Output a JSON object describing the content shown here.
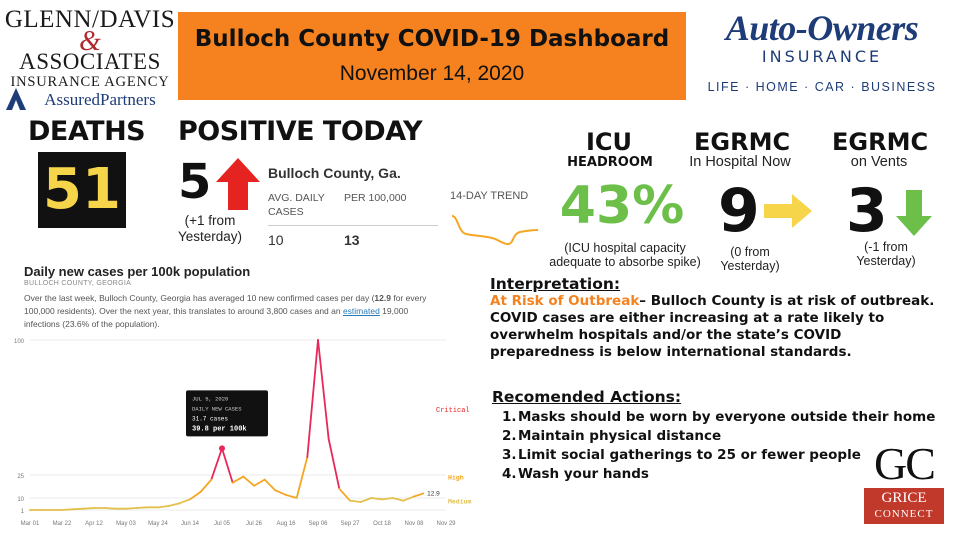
{
  "logos": {
    "glenn_davis": {
      "line1": "GLENN/DAVIS",
      "amp": "&",
      "line2": "ASSOCIATES",
      "line3": "INSURANCE AGENCY",
      "line4": "AssuredPartners"
    },
    "auto_owners": {
      "name": "Auto-Owners",
      "sub": "INSURANCE",
      "tagline": "LIFE · HOME · CAR · BUSINESS"
    },
    "grice": {
      "letters": "GC",
      "line1": "GRICE",
      "line2": "CONNECT"
    }
  },
  "header": {
    "title": "Bulloch County COVID-19 Dashboard",
    "date": "November 14, 2020"
  },
  "deaths": {
    "label": "DEATHS",
    "value": "51"
  },
  "positive": {
    "label": "POSITIVE TODAY",
    "value": "5",
    "note": "(+1 from Yesterday)"
  },
  "county_table": {
    "title": "Bulloch County, Ga.",
    "col1": "AVG. DAILY CASES",
    "col2": "PER 100,000",
    "val1": "10",
    "val2": "13",
    "trend_label": "14-DAY TREND"
  },
  "icu": {
    "label": "ICU",
    "sub": "HEADROOM",
    "value": "43%",
    "note": "(ICU hospital capacity adequate to absorbe spike)"
  },
  "egrmc_hospital": {
    "label": "EGRMC",
    "sub": "In Hospital Now",
    "value": "9",
    "note": "(0 from Yesterday)"
  },
  "egrmc_vents": {
    "label": "EGRMC",
    "sub": "on Vents",
    "value": "3",
    "note": "(-1 from Yesterday)"
  },
  "colors": {
    "orange": "#f5821f",
    "green": "#6cc04a",
    "yellow": "#f6d54a",
    "red": "#e52421",
    "navy": "#1d3c78"
  },
  "chart_panel": {
    "title": "Daily new cases per 100k population",
    "subtitle": "BULLOCH COUNTY, GEORGIA",
    "desc_a": "Over the last week, Bulloch County, Georgia has averaged 10 new confirmed cases per day (",
    "desc_bold": "12.9",
    "desc_b": " for every 100,000 residents). Over the next year, this translates to around 3,800 cases and an ",
    "desc_link": "estimated",
    "desc_c": " 19,000 infections (23.6% of the population).",
    "tooltip": {
      "date": "JUL 5, 2020",
      "label": "DAILY NEW CASES",
      "cases": "31.7 cases",
      "per": "39.8 per 100k"
    },
    "zone_critical": "Critical",
    "zone_high": "High",
    "zone_medium": "Medium",
    "last_value_label": "12.9"
  },
  "chart_data": {
    "type": "line",
    "title": "Daily new cases per 100k population",
    "xlabel": "",
    "ylabel": "",
    "ylim": [
      0,
      100
    ],
    "yticks": [
      "1",
      "10",
      "25",
      "100"
    ],
    "xticks": [
      "Mar 01",
      "Mar 22",
      "Apr 12",
      "May 03",
      "May 24",
      "Jun 14",
      "Jul 05",
      "Jul 26",
      "Aug 16",
      "Sep 06",
      "Sep 27",
      "Oct 18",
      "Nov 08",
      "Nov 29"
    ],
    "x": [
      "Mar 01",
      "Mar 08",
      "Mar 15",
      "Mar 22",
      "Mar 29",
      "Apr 05",
      "Apr 12",
      "Apr 19",
      "Apr 26",
      "May 03",
      "May 10",
      "May 17",
      "May 24",
      "May 31",
      "Jun 07",
      "Jun 14",
      "Jun 21",
      "Jun 28",
      "Jul 05",
      "Jul 12",
      "Jul 19",
      "Jul 26",
      "Aug 02",
      "Aug 09",
      "Aug 16",
      "Aug 23",
      "Aug 30",
      "Sep 06",
      "Sep 13",
      "Sep 20",
      "Sep 27",
      "Oct 04",
      "Oct 11",
      "Oct 18",
      "Oct 25",
      "Nov 01",
      "Nov 08",
      "Nov 14"
    ],
    "series": [
      {
        "values": [
          0,
          0,
          0.3,
          1,
          1.5,
          2,
          2.5,
          2.5,
          2,
          2,
          2.5,
          3,
          3,
          4,
          6,
          9,
          14,
          22,
          39.8,
          20,
          24,
          18,
          22,
          15,
          12,
          10,
          35,
          100,
          45,
          16,
          8,
          7,
          10,
          9,
          10,
          8,
          11,
          12.9
        ]
      }
    ],
    "grid": true,
    "legend": "none"
  },
  "interpretation": {
    "heading": "Interpretation:",
    "risk": "At Risk of Outbreak",
    "text": "– Bulloch County is at risk of outbreak. COVID cases are either increasing at a rate likely to overwhelm hospitals and/or the state’s COVID preparedness is below international standards."
  },
  "actions": {
    "heading": "Recomended Actions:",
    "items": [
      "Masks should be worn by everyone outside their home",
      "Maintain physical distance",
      "Limit social gatherings to 25 or fewer people",
      "Wash your hands"
    ]
  }
}
